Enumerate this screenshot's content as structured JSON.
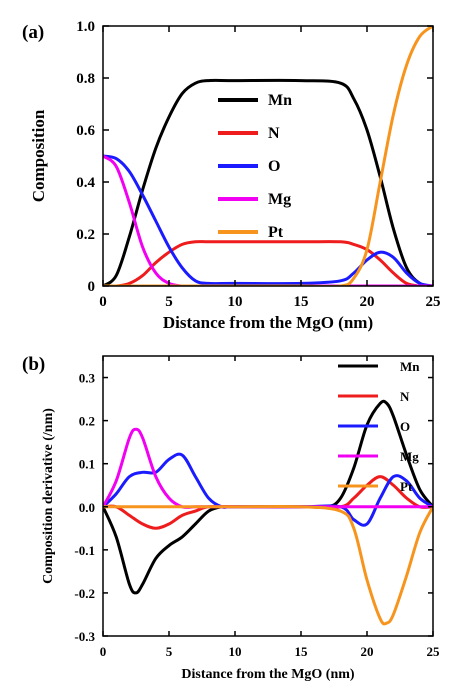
{
  "chart_data": [
    {
      "panel_label": "(a)",
      "type": "line",
      "xlabel": "Distance from the MgO (nm)",
      "ylabel": "Composition",
      "xlim": [
        0,
        25
      ],
      "ylim": [
        0,
        1.0
      ],
      "xticks": [
        "0",
        "5",
        "10",
        "15",
        "20",
        "25"
      ],
      "yticks": [
        "0",
        "0.2",
        "0.4",
        "0.6",
        "0.8",
        "1.0"
      ],
      "grid": false,
      "legend_position": "center",
      "colors": {
        "Mn": "#000000",
        "N": "#ee1c1c",
        "O": "#1b1bff",
        "Mg": "#f200f2",
        "Pt": "#f7941d"
      },
      "series": [
        {
          "name": "Mn",
          "x": [
            0,
            1,
            2,
            3,
            4,
            5,
            6,
            7,
            8,
            10,
            15,
            18,
            19,
            20,
            21,
            22,
            23,
            24,
            25
          ],
          "values": [
            0.0,
            0.04,
            0.19,
            0.37,
            0.53,
            0.65,
            0.74,
            0.78,
            0.79,
            0.79,
            0.79,
            0.78,
            0.72,
            0.6,
            0.42,
            0.22,
            0.07,
            0.01,
            0.0
          ]
        },
        {
          "name": "N",
          "x": [
            0,
            1,
            2,
            3,
            4,
            5,
            6,
            7,
            8,
            10,
            15,
            18,
            19,
            20,
            21,
            22,
            23,
            24,
            25
          ],
          "values": [
            0.0,
            0.0,
            0.01,
            0.04,
            0.09,
            0.13,
            0.16,
            0.17,
            0.17,
            0.17,
            0.17,
            0.17,
            0.16,
            0.14,
            0.1,
            0.05,
            0.01,
            0.0,
            0.0
          ]
        },
        {
          "name": "O",
          "x": [
            0,
            1,
            2,
            3,
            4,
            5,
            6,
            7,
            8,
            10,
            15,
            18,
            19,
            20,
            21,
            22,
            23,
            24,
            25
          ],
          "values": [
            0.5,
            0.49,
            0.44,
            0.35,
            0.25,
            0.15,
            0.07,
            0.02,
            0.01,
            0.01,
            0.01,
            0.02,
            0.05,
            0.1,
            0.13,
            0.11,
            0.05,
            0.01,
            0.0
          ]
        },
        {
          "name": "Mg",
          "x": [
            0,
            1,
            2,
            3,
            4,
            5,
            6,
            7,
            8,
            10,
            15,
            18,
            19,
            20,
            21,
            22,
            23,
            24,
            25
          ],
          "values": [
            0.5,
            0.46,
            0.32,
            0.15,
            0.05,
            0.01,
            0.0,
            0.0,
            0.0,
            0.0,
            0.0,
            0.0,
            0.0,
            0.0,
            0.0,
            0.0,
            0.0,
            0.0,
            0.0
          ]
        },
        {
          "name": "Pt",
          "x": [
            0,
            1,
            2,
            3,
            4,
            5,
            6,
            7,
            8,
            10,
            15,
            18,
            19,
            20,
            21,
            22,
            23,
            24,
            25
          ],
          "values": [
            0.0,
            0.0,
            0.0,
            0.0,
            0.0,
            0.0,
            0.0,
            0.0,
            0.0,
            0.0,
            0.0,
            0.0,
            0.03,
            0.14,
            0.4,
            0.66,
            0.85,
            0.96,
            1.0
          ]
        }
      ]
    },
    {
      "panel_label": "(b)",
      "type": "line",
      "xlabel": "Distance from the MgO (nm)",
      "ylabel": "Composition derivative (/nm)",
      "xlim": [
        0,
        25
      ],
      "ylim": [
        -0.3,
        0.35
      ],
      "xticks": [
        "0",
        "5",
        "10",
        "15",
        "20",
        "25"
      ],
      "yticks": [
        "-0.3",
        "-0.2",
        "-0.1",
        "0.0",
        "0.1",
        "0.2",
        "0.3"
      ],
      "grid": false,
      "legend_position": "top-right",
      "colors": {
        "Mn": "#000000",
        "N": "#ee1c1c",
        "O": "#1b1bff",
        "Mg": "#f200f2",
        "Pt": "#f7941d"
      },
      "series": [
        {
          "name": "Mn",
          "x": [
            0,
            1,
            2,
            2.5,
            3,
            4,
            5,
            6,
            7,
            8,
            9,
            10,
            15,
            17,
            18,
            19,
            20,
            21,
            21.5,
            22,
            23,
            24,
            25
          ],
          "values": [
            0.0,
            -0.07,
            -0.18,
            -0.2,
            -0.18,
            -0.12,
            -0.09,
            -0.07,
            -0.04,
            -0.01,
            0.0,
            0.0,
            0.0,
            0.0,
            0.02,
            0.09,
            0.19,
            0.24,
            0.24,
            0.21,
            0.12,
            0.04,
            0.0
          ]
        },
        {
          "name": "N",
          "x": [
            0,
            1,
            2,
            3,
            4,
            5,
            6,
            7,
            8,
            10,
            15,
            18,
            19,
            20,
            21,
            22,
            23,
            24,
            25
          ],
          "values": [
            0.0,
            0.0,
            -0.02,
            -0.04,
            -0.05,
            -0.04,
            -0.02,
            -0.01,
            0.0,
            0.0,
            0.0,
            0.0,
            0.02,
            0.05,
            0.07,
            0.05,
            0.02,
            0.0,
            0.0
          ]
        },
        {
          "name": "O",
          "x": [
            0,
            1,
            2,
            3,
            4,
            5,
            6,
            7,
            8,
            9,
            10,
            15,
            18,
            19,
            20,
            21,
            22,
            23,
            24,
            25
          ],
          "values": [
            0.0,
            0.03,
            0.07,
            0.08,
            0.08,
            0.11,
            0.12,
            0.07,
            0.02,
            0.0,
            0.0,
            0.0,
            0.0,
            -0.03,
            -0.04,
            0.02,
            0.07,
            0.06,
            0.02,
            0.0
          ]
        },
        {
          "name": "Mg",
          "x": [
            0,
            1,
            2,
            2.5,
            3,
            4,
            5,
            6,
            7,
            8,
            10,
            15,
            20,
            25
          ],
          "values": [
            0.0,
            0.06,
            0.16,
            0.18,
            0.16,
            0.07,
            0.02,
            0.0,
            0.0,
            0.0,
            0.0,
            0.0,
            0.0,
            0.0
          ]
        },
        {
          "name": "Pt",
          "x": [
            0,
            5,
            10,
            15,
            18,
            19,
            20,
            21,
            21.5,
            22,
            23,
            24,
            25
          ],
          "values": [
            0.0,
            0.0,
            0.0,
            0.0,
            -0.01,
            -0.05,
            -0.17,
            -0.26,
            -0.27,
            -0.25,
            -0.16,
            -0.06,
            0.0
          ]
        }
      ]
    }
  ]
}
